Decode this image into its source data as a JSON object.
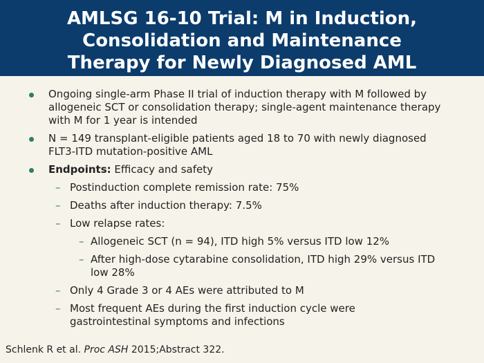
{
  "header": {
    "title_lines": [
      "AMLSG 16-10 Trial: M in Induction,",
      "Consolidation and Maintenance",
      "Therapy for Newly Diagnosed AML"
    ]
  },
  "bullets": [
    {
      "text": "Ongoing single-arm Phase II trial of induction therapy with M followed by allogeneic SCT or consolidation therapy; single-agent maintenance therapy with M for 1 year is intended"
    },
    {
      "text": "N = 149 transplant-eligible patients aged 18 to 70 with newly diagnosed FLT3-ITD mutation-positive AML"
    },
    {
      "label": "Endpoints:",
      "text": "Efficacy and safety",
      "items": [
        {
          "text": "Postinduction complete remission rate: 75%"
        },
        {
          "text": "Deaths after induction therapy: 7.5%"
        },
        {
          "text": "Low relapse rates:",
          "items": [
            {
              "text": "Allogeneic SCT (n = 94), ITD high 5% versus ITD low 12%"
            },
            {
              "text": "After high-dose cytarabine consolidation, ITD high 29% versus ITD low 28%"
            }
          ]
        },
        {
          "text": "Only 4 Grade 3 or 4 AEs were attributed to M"
        },
        {
          "text": "Most frequent AEs during the first induction cycle were gastrointestinal symptoms and infections"
        }
      ]
    }
  ],
  "footer": {
    "author": "Schlenk R et al.",
    "journal": "Proc ASH",
    "details": "2015;Abstract 322."
  }
}
